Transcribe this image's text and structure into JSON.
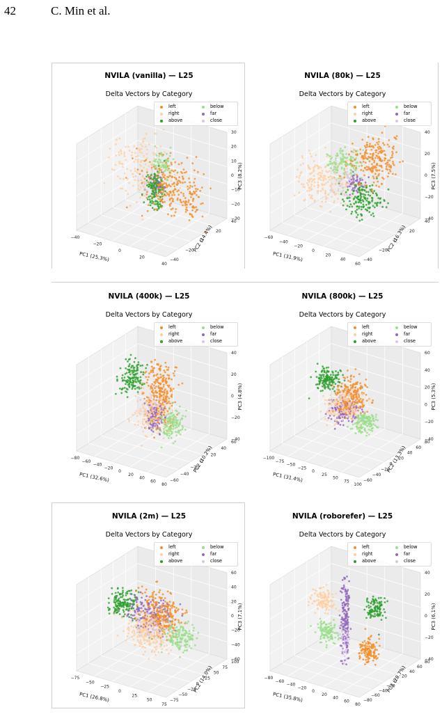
{
  "page_header": {
    "page_number": "42",
    "authors": "C. Min et al."
  },
  "category_colors": {
    "left": "#f28e2b",
    "right": "#fdcfa1",
    "above": "#2ca02c",
    "below": "#98df8a",
    "far": "#9467bd",
    "close": "#dcc6e6"
  },
  "legend": [
    "left",
    "right",
    "above",
    "below",
    "far",
    "close"
  ],
  "chart_data": [
    {
      "type": "scatter",
      "title": "NVILA (vanilla) — L25",
      "subtitle": "Delta Vectors by Category",
      "xlabel": "PC1 (25.3%)",
      "ylabel": "PC2 (14.4%)",
      "zlabel": "PC3 (8.2%)",
      "x_ticks": [
        "−40",
        "−20",
        "0",
        "20",
        "40"
      ],
      "y_ticks": [
        "−40",
        "−20",
        "0",
        "20",
        "40"
      ],
      "z_ticks": [
        "30",
        "20",
        "10",
        "0",
        "−10",
        "−20",
        "−30"
      ],
      "clusters": [
        {
          "category": "left",
          "center": [
            22,
            0,
            0
          ],
          "spread": [
            16,
            10,
            10
          ],
          "count": 260
        },
        {
          "category": "right",
          "center": [
            -15,
            8,
            5
          ],
          "spread": [
            15,
            12,
            12
          ],
          "count": 150
        },
        {
          "category": "above",
          "center": [
            5,
            -2,
            -5
          ],
          "spread": [
            4,
            4,
            8
          ],
          "count": 140
        },
        {
          "category": "below",
          "center": [
            8,
            5,
            12
          ],
          "spread": [
            4,
            4,
            6
          ],
          "count": 70
        },
        {
          "category": "far",
          "center": [
            5,
            0,
            0
          ],
          "spread": [
            3,
            3,
            4
          ],
          "count": 40
        },
        {
          "category": "close",
          "center": [
            0,
            0,
            0
          ],
          "spread": [
            5,
            5,
            6
          ],
          "count": 30
        }
      ]
    },
    {
      "type": "scatter",
      "title": "NVILA (80k) — L25",
      "subtitle": "Delta Vectors by Category",
      "xlabel": "PC1 (31.9%)",
      "ylabel": "PC2 (16.3%)",
      "zlabel": "PC3 (7.5%)",
      "x_ticks": [
        "−60",
        "−40",
        "−20",
        "0",
        "20",
        "40",
        "60"
      ],
      "y_ticks": [
        "−40",
        "−20",
        "0",
        "20",
        "40"
      ],
      "z_ticks": [
        "40",
        "20",
        "0",
        "−20",
        "−40"
      ],
      "clusters": [
        {
          "category": "left",
          "center": [
            35,
            10,
            25
          ],
          "spread": [
            15,
            10,
            12
          ],
          "count": 220
        },
        {
          "category": "right",
          "center": [
            -30,
            -5,
            -5
          ],
          "spread": [
            18,
            10,
            12
          ],
          "count": 200
        },
        {
          "category": "above",
          "center": [
            35,
            -5,
            -10
          ],
          "spread": [
            12,
            8,
            8
          ],
          "count": 150
        },
        {
          "category": "below",
          "center": [
            -15,
            15,
            10
          ],
          "spread": [
            10,
            8,
            8
          ],
          "count": 130
        },
        {
          "category": "far",
          "center": [
            15,
            0,
            0
          ],
          "spread": [
            5,
            5,
            5
          ],
          "count": 50
        },
        {
          "category": "close",
          "center": [
            0,
            0,
            0
          ],
          "spread": [
            8,
            6,
            8
          ],
          "count": 40
        }
      ]
    },
    {
      "type": "scatter",
      "title": "NVILA (400k) — L25",
      "subtitle": "Delta Vectors by Category",
      "xlabel": "PC1 (32.6%)",
      "ylabel": "PC2 (10.2%)",
      "zlabel": "PC3 (4.8%)",
      "x_ticks": [
        "−80",
        "−60",
        "−40",
        "−20",
        "0",
        "20",
        "40",
        "60",
        "80"
      ],
      "y_ticks": [
        "−60",
        "−40",
        "−20",
        "0",
        "20",
        "40",
        "60"
      ],
      "z_ticks": [
        "40",
        "20",
        "0",
        "−20",
        "−40"
      ],
      "clusters": [
        {
          "category": "left",
          "center": [
            15,
            5,
            10
          ],
          "spread": [
            12,
            10,
            18
          ],
          "count": 260
        },
        {
          "category": "right",
          "center": [
            5,
            -5,
            -10
          ],
          "spread": [
            14,
            10,
            12
          ],
          "count": 170
        },
        {
          "category": "above",
          "center": [
            -60,
            20,
            10
          ],
          "spread": [
            10,
            10,
            8
          ],
          "count": 140
        },
        {
          "category": "below",
          "center": [
            60,
            -20,
            -10
          ],
          "spread": [
            10,
            10,
            8
          ],
          "count": 130
        },
        {
          "category": "far",
          "center": [
            5,
            0,
            -15
          ],
          "spread": [
            8,
            6,
            8
          ],
          "count": 110
        },
        {
          "category": "close",
          "center": [
            0,
            0,
            0
          ],
          "spread": [
            8,
            8,
            8
          ],
          "count": 40
        }
      ]
    },
    {
      "type": "scatter",
      "title": "NVILA (800k) — L25",
      "subtitle": "Delta Vectors by Category",
      "xlabel": "PC1 (31.4%)",
      "ylabel": "PC2 (13.3%)",
      "zlabel": "PC3 (5.3%)",
      "x_ticks": [
        "−100",
        "−75",
        "−50",
        "−25",
        "0",
        "25",
        "50",
        "75",
        "100"
      ],
      "y_ticks": [
        "−60",
        "−40",
        "−20",
        "0",
        "20",
        "40",
        "60",
        "80"
      ],
      "z_ticks": [
        "60",
        "40",
        "20",
        "0",
        "−20",
        "−40"
      ],
      "clusters": [
        {
          "category": "left",
          "center": [
            10,
            5,
            10
          ],
          "spread": [
            18,
            12,
            14
          ],
          "count": 230
        },
        {
          "category": "right",
          "center": [
            0,
            -5,
            -5
          ],
          "spread": [
            18,
            12,
            12
          ],
          "count": 170
        },
        {
          "category": "above",
          "center": [
            -75,
            25,
            10
          ],
          "spread": [
            12,
            10,
            8
          ],
          "count": 150
        },
        {
          "category": "below",
          "center": [
            75,
            -20,
            -10
          ],
          "spread": [
            12,
            10,
            8
          ],
          "count": 140
        },
        {
          "category": "far",
          "center": [
            -5,
            0,
            -15
          ],
          "spread": [
            14,
            10,
            10
          ],
          "count": 140
        },
        {
          "category": "close",
          "center": [
            0,
            0,
            0
          ],
          "spread": [
            12,
            10,
            10
          ],
          "count": 50
        }
      ]
    },
    {
      "type": "scatter",
      "title": "NVILA (2m) — L25",
      "subtitle": "Delta Vectors by Category",
      "xlabel": "PC1 (26.8%)",
      "ylabel": "PC2 (14.0%)",
      "zlabel": "PC3 (7.1%)",
      "x_ticks": [
        "−75",
        "−50",
        "−25",
        "0",
        "25",
        "50",
        "75"
      ],
      "y_ticks": [
        "−75",
        "−50",
        "−25",
        "0",
        "25",
        "50",
        "75",
        "100"
      ],
      "z_ticks": [
        "60",
        "40",
        "20",
        "0",
        "−20",
        "−40",
        "−60"
      ],
      "clusters": [
        {
          "category": "left",
          "center": [
            15,
            5,
            15
          ],
          "spread": [
            18,
            12,
            16
          ],
          "count": 260
        },
        {
          "category": "right",
          "center": [
            -5,
            -5,
            -15
          ],
          "spread": [
            20,
            12,
            14
          ],
          "count": 220
        },
        {
          "category": "above",
          "center": [
            -70,
            20,
            5
          ],
          "spread": [
            12,
            12,
            10
          ],
          "count": 160
        },
        {
          "category": "below",
          "center": [
            70,
            -20,
            0
          ],
          "spread": [
            14,
            12,
            10
          ],
          "count": 150
        },
        {
          "category": "far",
          "center": [
            -10,
            10,
            5
          ],
          "spread": [
            20,
            12,
            14
          ],
          "count": 160
        },
        {
          "category": "close",
          "center": [
            0,
            0,
            0
          ],
          "spread": [
            14,
            10,
            10
          ],
          "count": 60
        }
      ]
    },
    {
      "type": "scatter",
      "title": "NVILA (roborefer) — L25",
      "subtitle": "Delta Vectors by Category",
      "xlabel": "PC1 (35.8%)",
      "ylabel": "PC2 (28.7%)",
      "zlabel": "PC3 (6.1%)",
      "x_ticks": [
        "−80",
        "−60",
        "−40",
        "−20",
        "0",
        "20",
        "40",
        "60",
        "80"
      ],
      "y_ticks": [
        "−80",
        "−60",
        "−40",
        "−20",
        "0",
        "20",
        "40",
        "60",
        "80"
      ],
      "z_ticks": [
        "40",
        "20",
        "0",
        "−20",
        "−40"
      ],
      "clusters": [
        {
          "category": "left",
          "center": [
            55,
            -10,
            -20
          ],
          "spread": [
            10,
            8,
            6
          ],
          "count": 130
        },
        {
          "category": "right",
          "center": [
            -55,
            15,
            10
          ],
          "spread": [
            10,
            8,
            6
          ],
          "count": 120
        },
        {
          "category": "above",
          "center": [
            35,
            40,
            10
          ],
          "spread": [
            8,
            8,
            6
          ],
          "count": 110
        },
        {
          "category": "below",
          "center": [
            -25,
            -20,
            -10
          ],
          "spread": [
            10,
            8,
            6
          ],
          "count": 110
        },
        {
          "category": "far",
          "center": [
            0,
            0,
            5
          ],
          "spread": [
            4,
            4,
            22
          ],
          "count": 170
        },
        {
          "category": "close",
          "center": [
            0,
            0,
            -20
          ],
          "spread": [
            4,
            4,
            8
          ],
          "count": 50
        }
      ]
    }
  ]
}
